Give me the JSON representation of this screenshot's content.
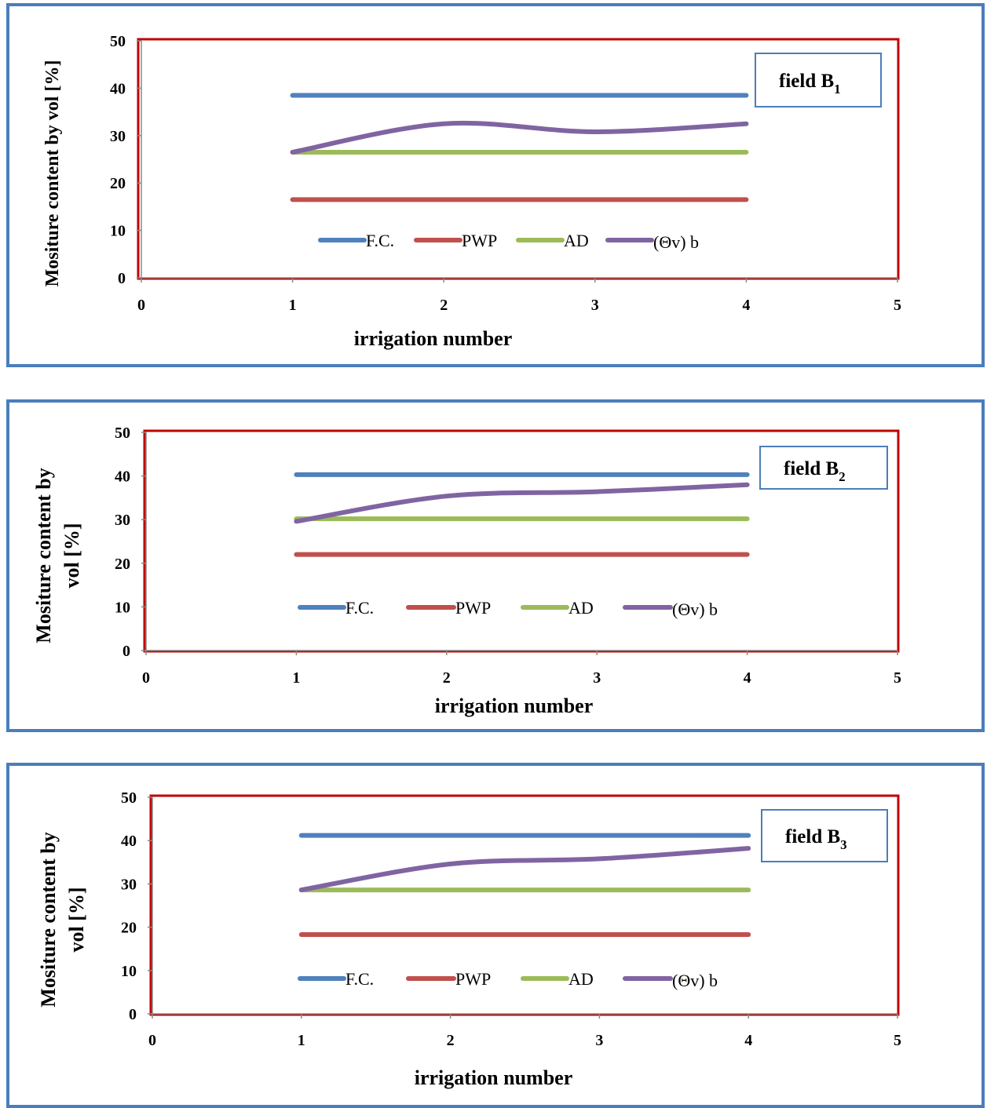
{
  "colors": {
    "panel_border": "#4a7ebb",
    "plot_border": "#c00000",
    "fc": "#4f81bd",
    "pwp": "#c0504d",
    "ad": "#9bbb59",
    "theta": "#8064a2",
    "label_box": "#4a7ebb"
  },
  "chart_data": [
    {
      "type": "line",
      "field_label": "field B",
      "field_sub": "1",
      "xlabel": "irrigation number",
      "ylabel_lines": [
        "Mositure content by vol [%]"
      ],
      "xlim": [
        0,
        5
      ],
      "ylim": [
        0,
        50
      ],
      "xticks": [
        "0",
        "1",
        "2",
        "3",
        "4",
        "5"
      ],
      "yticks": [
        "0",
        "10",
        "20",
        "30",
        "40",
        "50"
      ],
      "x": [
        1,
        2,
        3,
        4
      ],
      "legend": [
        "F.C.",
        "PWP",
        "AD",
        "(Θv) b"
      ],
      "series": [
        {
          "name": "F.C.",
          "values": [
            38.5,
            38.5,
            38.5,
            38.5
          ]
        },
        {
          "name": "PWP",
          "values": [
            16.5,
            16.5,
            16.5,
            16.5
          ]
        },
        {
          "name": "AD",
          "values": [
            26.5,
            26.5,
            26.5,
            26.5
          ]
        },
        {
          "name": "(Θv) b",
          "values": [
            26.5,
            32.5,
            30.8,
            32.5
          ]
        }
      ]
    },
    {
      "type": "line",
      "field_label": "field B",
      "field_sub": "2",
      "xlabel": "irrigation number",
      "ylabel_lines": [
        "Mositure content by",
        "vol [%]"
      ],
      "xlim": [
        0,
        5
      ],
      "ylim": [
        0,
        50
      ],
      "xticks": [
        "0",
        "1",
        "2",
        "3",
        "4",
        "5"
      ],
      "yticks": [
        "0",
        "10",
        "20",
        "30",
        "40",
        "50"
      ],
      "x": [
        1,
        2,
        3,
        4
      ],
      "legend": [
        "F.C.",
        "PWP",
        "AD",
        "(Θv) b"
      ],
      "series": [
        {
          "name": "F.C.",
          "values": [
            40.3,
            40.3,
            40.3,
            40.3
          ]
        },
        {
          "name": "PWP",
          "values": [
            22.0,
            22.0,
            22.0,
            22.0
          ]
        },
        {
          "name": "AD",
          "values": [
            30.2,
            30.2,
            30.2,
            30.2
          ]
        },
        {
          "name": "(Θv) b",
          "values": [
            29.6,
            35.4,
            36.4,
            38.0
          ]
        }
      ]
    },
    {
      "type": "line",
      "field_label": "field B",
      "field_sub": "3",
      "xlabel": "irrigation number",
      "ylabel_lines": [
        "Mositure content by",
        "vol [%]"
      ],
      "xlim": [
        0,
        5
      ],
      "ylim": [
        0,
        50
      ],
      "xticks": [
        "0",
        "1",
        "2",
        "3",
        "4",
        "5"
      ],
      "yticks": [
        "0",
        "10",
        "20",
        "30",
        "40",
        "50"
      ],
      "x": [
        1,
        2,
        3,
        4
      ],
      "legend": [
        "F.C.",
        "PWP",
        "AD",
        "(Θv) b"
      ],
      "series": [
        {
          "name": "F.C.",
          "values": [
            41.2,
            41.2,
            41.2,
            41.2
          ]
        },
        {
          "name": "PWP",
          "values": [
            18.3,
            18.3,
            18.3,
            18.3
          ]
        },
        {
          "name": "AD",
          "values": [
            28.6,
            28.6,
            28.6,
            28.6
          ]
        },
        {
          "name": "(Θv) b",
          "values": [
            28.6,
            34.6,
            35.8,
            38.2
          ]
        }
      ]
    }
  ]
}
